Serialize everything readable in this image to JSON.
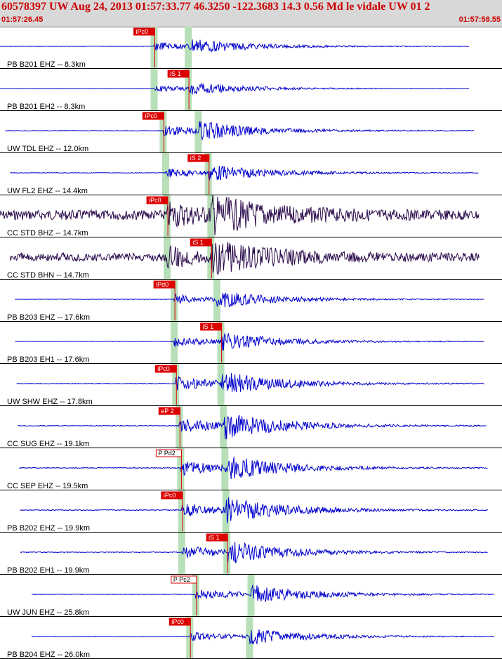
{
  "header": {
    "title": "60578397 UW Aug 24, 2013 01:57:33.77   46.3250 -122.3683 14.3 0.56 Md le vidale UW 01   2",
    "start_time": "01:57:26.45",
    "end_time": "01:57:58.55"
  },
  "colors": {
    "header_bg": "#d8d8d8",
    "header_text": "#cc0000",
    "trace_blue": "#0000cc",
    "trace_dark": "#2a0a4a",
    "pick_red": "#dd0000",
    "window_green": "#b8e0b8"
  },
  "chart_data": {
    "type": "seismogram",
    "time_range": [
      "01:57:26.45",
      "01:57:58.55"
    ],
    "traces": [
      {
        "label": "PB B201 EHZ -- 8.3km",
        "pick": {
          "label": "iPc0",
          "style": "filled"
        },
        "p_t": 0.307,
        "s_t": 0.375,
        "start": 0.0,
        "end": 0.935,
        "amp": 9,
        "color": "#0000cc"
      },
      {
        "label": "PB B201 EH2 -- 8.3km",
        "pick": {
          "label": "iS 1",
          "style": "filled"
        },
        "p_t": 0.307,
        "s_t": 0.375,
        "start": 0.0,
        "end": 0.935,
        "amp": 7,
        "color": "#0000cc"
      },
      {
        "label": "UW TDL EHZ -- 12.0km",
        "pick": {
          "label": "iPc0",
          "style": "filled"
        },
        "p_t": 0.325,
        "s_t": 0.395,
        "start": 0.01,
        "end": 0.945,
        "amp": 11,
        "color": "#0000cc"
      },
      {
        "label": "UW FL2 EHZ -- 14.4km",
        "pick": {
          "label": "iS 2",
          "style": "filled"
        },
        "p_t": 0.33,
        "s_t": 0.415,
        "start": 0.02,
        "end": 0.953,
        "amp": 10,
        "color": "#0000cc"
      },
      {
        "label": "CC STD BHZ -- 14.7km",
        "pick": {
          "label": "iPc0",
          "style": "filled"
        },
        "p_t": 0.333,
        "s_t": 0.42,
        "start": 0.0,
        "end": 0.955,
        "amp": 20,
        "color": "#2a0a4a"
      },
      {
        "label": "CC STD BHN -- 14.7km",
        "pick": {
          "label": "iS 1",
          "style": "filled"
        },
        "p_t": 0.333,
        "s_t": 0.42,
        "start": 0.02,
        "end": 0.955,
        "amp": 17,
        "color": "#2a0a4a"
      },
      {
        "label": "PB B203 EHZ -- 17.6km",
        "pick": {
          "label": "iPd0",
          "style": "filled"
        },
        "p_t": 0.347,
        "s_t": 0.432,
        "start": 0.03,
        "end": 0.965,
        "amp": 10,
        "color": "#0000cc"
      },
      {
        "label": "PB B203 EH1 -- 17.6km",
        "pick": {
          "label": "iS 1",
          "style": "filled"
        },
        "p_t": 0.347,
        "s_t": 0.44,
        "start": 0.03,
        "end": 0.965,
        "amp": 11,
        "color": "#0000cc"
      },
      {
        "label": "UW SHW EHZ -- 17.8km",
        "pick": {
          "label": "iPc0",
          "style": "filled"
        },
        "p_t": 0.35,
        "s_t": 0.44,
        "start": 0.033,
        "end": 0.965,
        "amp": 14,
        "color": "#0000cc"
      },
      {
        "label": "CC SUG EHZ -- 19.1km",
        "pick": {
          "label": "eP 2",
          "style": "filled"
        },
        "p_t": 0.357,
        "s_t": 0.445,
        "start": 0.036,
        "end": 0.97,
        "amp": 16,
        "color": "#0000cc"
      },
      {
        "label": "CC SEP EHZ -- 19.5km",
        "pick": {
          "label": "P Pd2",
          "style": "outline"
        },
        "p_t": 0.36,
        "s_t": 0.448,
        "start": 0.038,
        "end": 0.972,
        "amp": 15,
        "color": "#0000cc"
      },
      {
        "label": "PB B202 EHZ -- 19.9km",
        "pick": {
          "label": "iPc0",
          "style": "filled"
        },
        "p_t": 0.362,
        "s_t": 0.45,
        "start": 0.04,
        "end": 0.972,
        "amp": 15,
        "color": "#0000cc"
      },
      {
        "label": "PB B202 EH1 -- 19.9km",
        "pick": {
          "label": "iS 1",
          "style": "filled"
        },
        "p_t": 0.362,
        "s_t": 0.452,
        "start": 0.04,
        "end": 0.972,
        "amp": 14,
        "color": "#0000cc"
      },
      {
        "label": "UW JUN EHZ -- 25.8km",
        "pick": {
          "label": "P Pc2",
          "style": "outline"
        },
        "p_t": 0.39,
        "s_t": 0.5,
        "start": 0.063,
        "end": 0.985,
        "amp": 12,
        "color": "#0000cc"
      },
      {
        "label": "PB B204 EHZ -- 26.0km",
        "pick": {
          "label": "iPc0",
          "style": "filled"
        },
        "p_t": 0.378,
        "s_t": 0.497,
        "start": 0.063,
        "end": 0.985,
        "amp": 10,
        "color": "#0000cc"
      }
    ]
  }
}
